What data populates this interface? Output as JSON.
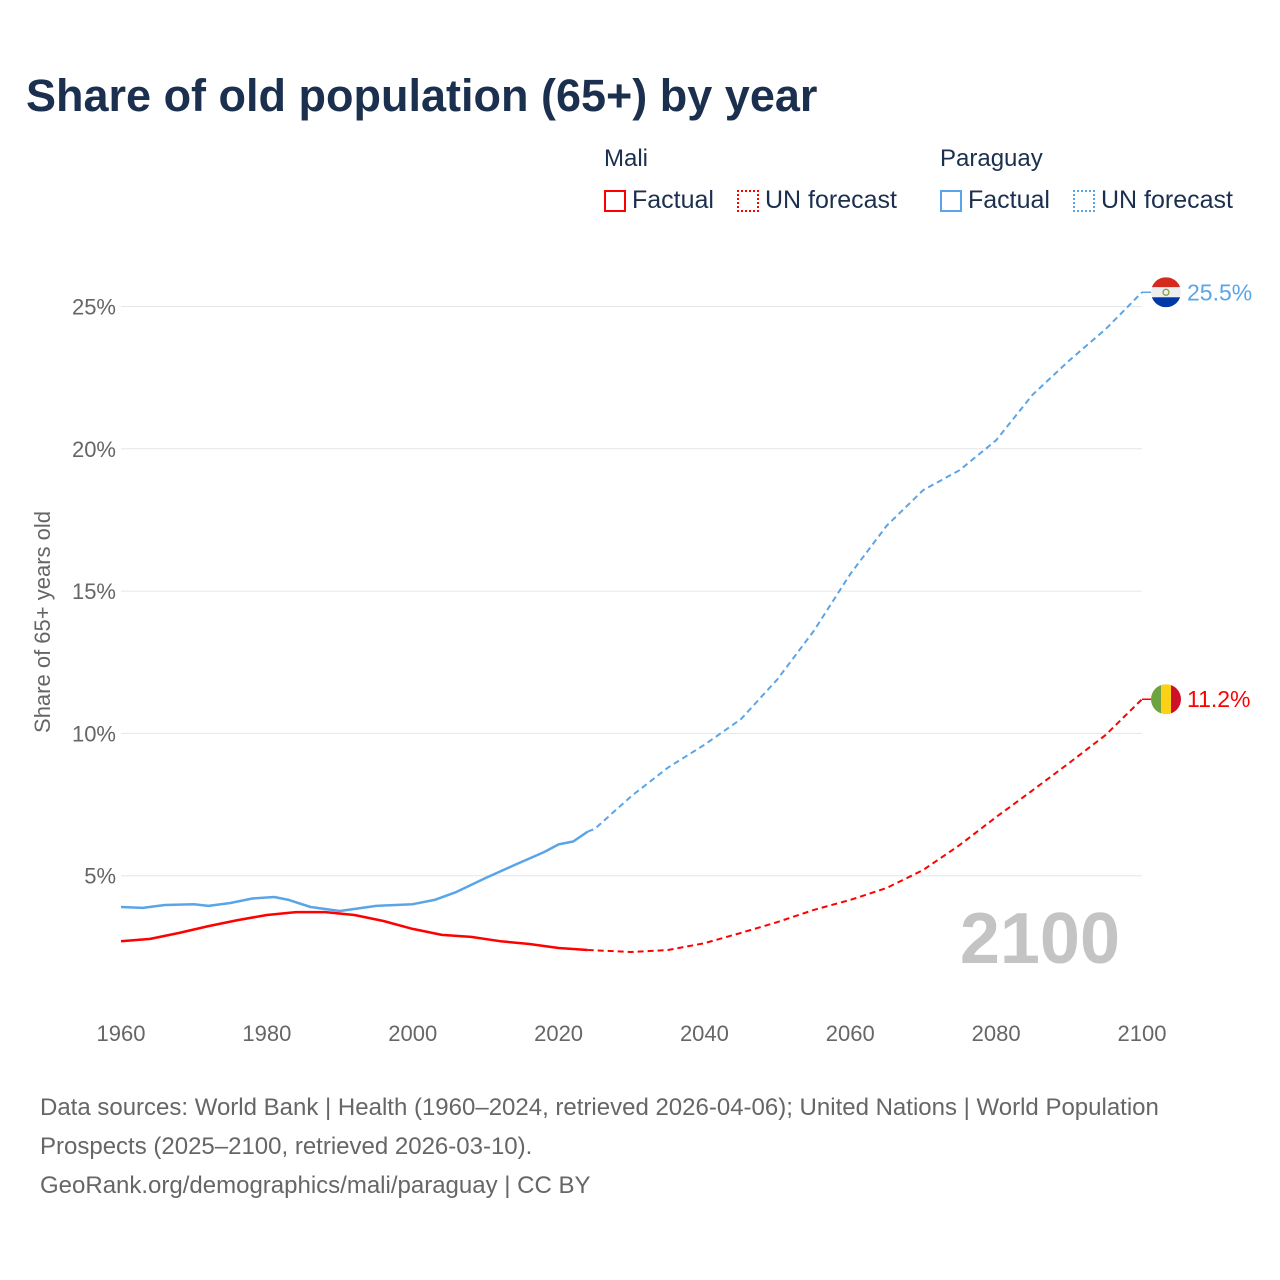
{
  "title": "Share of old population (65+) by year",
  "legend": {
    "groups": [
      {
        "country": "Mali",
        "factual": "Factual",
        "forecast": "UN forecast",
        "color": "#ff0000"
      },
      {
        "country": "Paraguay",
        "factual": "Factual",
        "forecast": "UN forecast",
        "color": "#5aa5e8"
      }
    ]
  },
  "watermark_year": "2100",
  "source": {
    "line1": "Data sources: World Bank | Health (1960–2024, retrieved 2026-04-06); United Nations | World Population Prospects (2025–2100, retrieved 2026-03-10).",
    "line2": "GeoRank.org/demographics/mali/paraguay | CC BY"
  },
  "chart_data": {
    "type": "line",
    "title": "Share of old population (65+) by year",
    "xlabel": "",
    "ylabel": "Share of 65+ years old",
    "xlim": [
      1960,
      2100
    ],
    "ylim": [
      0,
      26.5
    ],
    "xticks": [
      "1960",
      "1980",
      "2000",
      "2020",
      "2040",
      "2060",
      "2080",
      "2100"
    ],
    "yticks": [
      {
        "v": 5,
        "label": "5%"
      },
      {
        "v": 10,
        "label": "10%"
      },
      {
        "v": 15,
        "label": "15%"
      },
      {
        "v": 20,
        "label": "20%"
      },
      {
        "v": 25,
        "label": "25%"
      }
    ],
    "grid": true,
    "series": [
      {
        "name": "Paraguay",
        "color": "#5aa5e8",
        "end_label": "25.5%",
        "factual": [
          [
            1960,
            3.9
          ],
          [
            1963,
            3.87
          ],
          [
            1966,
            3.97
          ],
          [
            1970,
            4.0
          ],
          [
            1972,
            3.94
          ],
          [
            1975,
            4.04
          ],
          [
            1978,
            4.2
          ],
          [
            1981,
            4.25
          ],
          [
            1983,
            4.15
          ],
          [
            1986,
            3.9
          ],
          [
            1990,
            3.76
          ],
          [
            1995,
            3.94
          ],
          [
            2000,
            4.0
          ],
          [
            2003,
            4.15
          ],
          [
            2006,
            4.43
          ],
          [
            2010,
            4.92
          ],
          [
            2014,
            5.38
          ],
          [
            2018,
            5.83
          ],
          [
            2020,
            6.1
          ],
          [
            2022,
            6.2
          ],
          [
            2024,
            6.55
          ]
        ],
        "forecast": [
          [
            2024,
            6.55
          ],
          [
            2025,
            6.65
          ],
          [
            2030,
            7.8
          ],
          [
            2035,
            8.8
          ],
          [
            2040,
            9.6
          ],
          [
            2045,
            10.5
          ],
          [
            2050,
            11.9
          ],
          [
            2055,
            13.6
          ],
          [
            2060,
            15.6
          ],
          [
            2065,
            17.3
          ],
          [
            2070,
            18.55
          ],
          [
            2075,
            19.25
          ],
          [
            2080,
            20.3
          ],
          [
            2085,
            21.9
          ],
          [
            2090,
            23.1
          ],
          [
            2095,
            24.2
          ],
          [
            2100,
            25.5
          ]
        ]
      },
      {
        "name": "Mali",
        "color": "#ff0000",
        "end_label": "11.2%",
        "factual": [
          [
            1960,
            2.7
          ],
          [
            1964,
            2.78
          ],
          [
            1968,
            2.99
          ],
          [
            1972,
            3.23
          ],
          [
            1976,
            3.44
          ],
          [
            1980,
            3.62
          ],
          [
            1984,
            3.72
          ],
          [
            1988,
            3.72
          ],
          [
            1992,
            3.62
          ],
          [
            1996,
            3.41
          ],
          [
            2000,
            3.13
          ],
          [
            2004,
            2.92
          ],
          [
            2008,
            2.85
          ],
          [
            2012,
            2.7
          ],
          [
            2016,
            2.6
          ],
          [
            2020,
            2.46
          ],
          [
            2024,
            2.39
          ]
        ],
        "forecast": [
          [
            2024,
            2.39
          ],
          [
            2030,
            2.32
          ],
          [
            2035,
            2.39
          ],
          [
            2040,
            2.63
          ],
          [
            2045,
            2.99
          ],
          [
            2050,
            3.37
          ],
          [
            2055,
            3.8
          ],
          [
            2060,
            4.15
          ],
          [
            2065,
            4.57
          ],
          [
            2070,
            5.2
          ],
          [
            2075,
            6.08
          ],
          [
            2080,
            7.06
          ],
          [
            2085,
            8.0
          ],
          [
            2090,
            8.96
          ],
          [
            2095,
            9.94
          ],
          [
            2100,
            11.2
          ]
        ]
      }
    ]
  }
}
